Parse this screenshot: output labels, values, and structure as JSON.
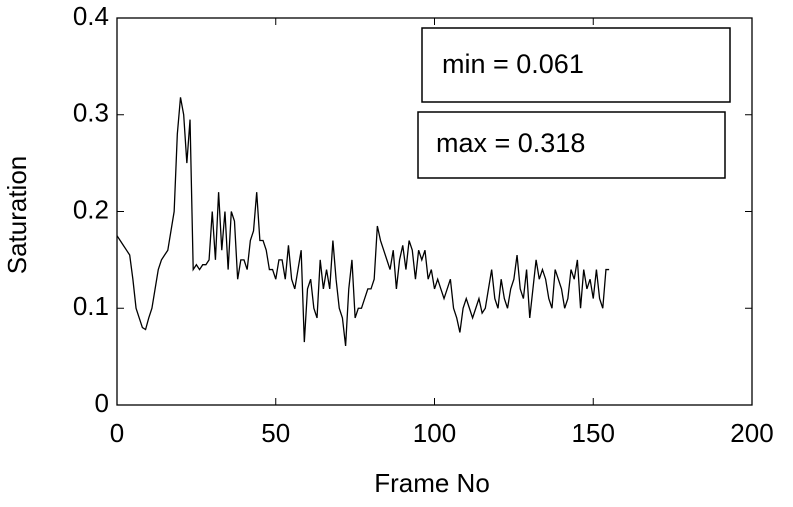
{
  "chart_data": {
    "type": "line",
    "xlabel": "Frame No",
    "ylabel": "Saturation",
    "annotations": [
      "min = 0.061",
      "max = 0.318"
    ],
    "color": "#000000",
    "xlim": [
      0,
      200
    ],
    "xticks": [
      0,
      50,
      100,
      150,
      200
    ],
    "ylim": [
      0,
      0.4
    ],
    "yticks": [
      0,
      0.1,
      0.2,
      0.3,
      0.4
    ],
    "x": [
      0,
      1,
      2,
      3,
      4,
      5,
      6,
      7,
      8,
      9,
      10,
      11,
      12,
      13,
      14,
      15,
      16,
      17,
      18,
      19,
      20,
      21,
      22,
      23,
      24,
      25,
      26,
      27,
      28,
      29,
      30,
      31,
      32,
      33,
      34,
      35,
      36,
      37,
      38,
      39,
      40,
      41,
      42,
      43,
      44,
      45,
      46,
      47,
      48,
      49,
      50,
      51,
      52,
      53,
      54,
      55,
      56,
      57,
      58,
      59,
      60,
      61,
      62,
      63,
      64,
      65,
      66,
      67,
      68,
      69,
      70,
      71,
      72,
      73,
      74,
      75,
      76,
      77,
      78,
      79,
      80,
      81,
      82,
      83,
      84,
      85,
      86,
      87,
      88,
      89,
      90,
      91,
      92,
      93,
      94,
      95,
      96,
      97,
      98,
      99,
      100,
      101,
      102,
      103,
      104,
      105,
      106,
      107,
      108,
      109,
      110,
      111,
      112,
      113,
      114,
      115,
      116,
      117,
      118,
      119,
      120,
      121,
      122,
      123,
      124,
      125,
      126,
      127,
      128,
      129,
      130,
      131,
      132,
      133,
      134,
      135,
      136,
      137,
      138,
      139,
      140,
      141,
      142,
      143,
      144,
      145,
      146,
      147,
      148,
      149,
      150,
      151,
      152,
      153,
      154,
      155
    ],
    "values": [
      0.175,
      0.17,
      0.165,
      0.16,
      0.155,
      0.13,
      0.1,
      0.09,
      0.08,
      0.078,
      0.09,
      0.1,
      0.12,
      0.14,
      0.15,
      0.155,
      0.16,
      0.18,
      0.2,
      0.28,
      0.318,
      0.3,
      0.25,
      0.295,
      0.14,
      0.145,
      0.14,
      0.145,
      0.145,
      0.15,
      0.2,
      0.15,
      0.22,
      0.16,
      0.2,
      0.14,
      0.2,
      0.19,
      0.13,
      0.15,
      0.15,
      0.14,
      0.17,
      0.18,
      0.22,
      0.17,
      0.17,
      0.16,
      0.14,
      0.14,
      0.13,
      0.15,
      0.15,
      0.13,
      0.165,
      0.13,
      0.12,
      0.14,
      0.16,
      0.065,
      0.12,
      0.13,
      0.1,
      0.09,
      0.15,
      0.12,
      0.14,
      0.12,
      0.17,
      0.13,
      0.1,
      0.09,
      0.061,
      0.12,
      0.15,
      0.09,
      0.1,
      0.1,
      0.11,
      0.12,
      0.12,
      0.13,
      0.185,
      0.17,
      0.16,
      0.15,
      0.14,
      0.16,
      0.12,
      0.15,
      0.165,
      0.14,
      0.17,
      0.16,
      0.13,
      0.16,
      0.15,
      0.16,
      0.13,
      0.14,
      0.12,
      0.13,
      0.12,
      0.11,
      0.12,
      0.13,
      0.1,
      0.09,
      0.075,
      0.1,
      0.11,
      0.1,
      0.09,
      0.1,
      0.11,
      0.095,
      0.1,
      0.12,
      0.14,
      0.11,
      0.1,
      0.13,
      0.11,
      0.1,
      0.12,
      0.13,
      0.155,
      0.12,
      0.11,
      0.14,
      0.09,
      0.12,
      0.15,
      0.13,
      0.14,
      0.13,
      0.11,
      0.1,
      0.14,
      0.13,
      0.12,
      0.1,
      0.11,
      0.14,
      0.13,
      0.15,
      0.1,
      0.14,
      0.12,
      0.13,
      0.11,
      0.14,
      0.11,
      0.1,
      0.14,
      0.14
    ]
  }
}
